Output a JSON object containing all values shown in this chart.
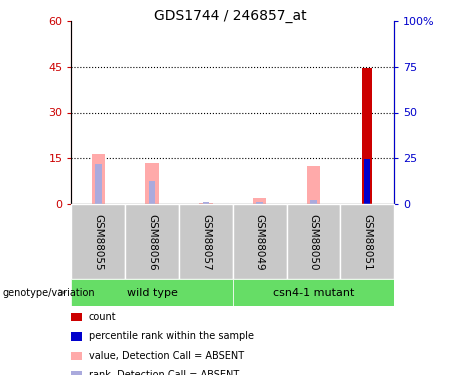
{
  "title": "GDS1744 / 246857_at",
  "samples": [
    "GSM88055",
    "GSM88056",
    "GSM88057",
    "GSM88049",
    "GSM88050",
    "GSM88051"
  ],
  "group1_label": "wild type",
  "group2_label": "csn4-1 mutant",
  "pink_values": [
    16.5,
    13.5,
    0.5,
    2.0,
    12.5,
    0.0
  ],
  "blue_rank_values_pct": [
    22.0,
    12.5,
    1.5,
    1.5,
    2.5,
    24.5
  ],
  "red_count_values": [
    0,
    0,
    0,
    0,
    0,
    44.5
  ],
  "blue_count_pct": [
    0,
    0,
    0,
    0,
    0,
    24.5
  ],
  "ylim_left": [
    0,
    60
  ],
  "ylim_right": [
    0,
    100
  ],
  "yticks_left": [
    0,
    15,
    30,
    45,
    60
  ],
  "yticks_right": [
    0,
    25,
    50,
    75,
    100
  ],
  "ytick_labels_left": [
    "0",
    "15",
    "30",
    "45",
    "60"
  ],
  "ytick_labels_right": [
    "0",
    "25",
    "50",
    "75",
    "100%"
  ],
  "left_axis_color": "#cc0000",
  "right_axis_color": "#0000cc",
  "pink_color": "#ffaaaa",
  "blue_rank_color": "#aaaadd",
  "red_count_color": "#cc0000",
  "blue_count_color": "#0000cc",
  "gray_box_color": "#c8c8c8",
  "green_box_color": "#66dd66",
  "genotype_label": "genotype/variation",
  "legend_items": [
    {
      "label": "count",
      "color": "#cc0000"
    },
    {
      "label": "percentile rank within the sample",
      "color": "#0000cc"
    },
    {
      "label": "value, Detection Call = ABSENT",
      "color": "#ffaaaa"
    },
    {
      "label": "rank, Detection Call = ABSENT",
      "color": "#aaaadd"
    }
  ]
}
